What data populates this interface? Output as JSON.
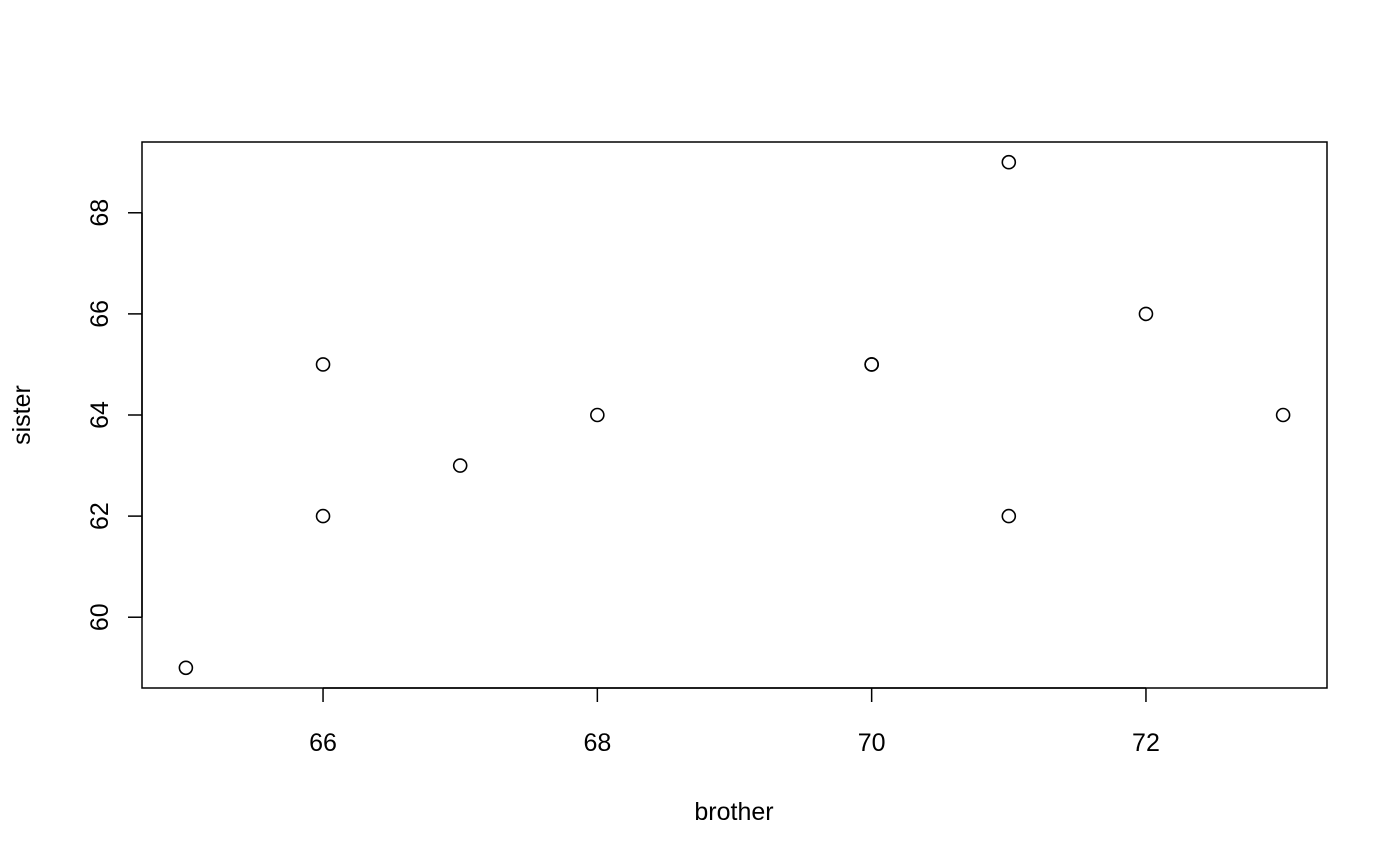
{
  "chart_data": {
    "type": "scatter",
    "xlabel": "brother",
    "ylabel": "sister",
    "xlim": [
      64.68,
      73.32
    ],
    "ylim": [
      58.6,
      69.4
    ],
    "xticks": [
      66,
      68,
      70,
      72
    ],
    "yticks": [
      60,
      62,
      64,
      66,
      68
    ],
    "grid": false,
    "marker": "open-circle",
    "colors": {
      "marker": "#000000",
      "axes": "#000000"
    },
    "points": [
      {
        "x": 65,
        "y": 59
      },
      {
        "x": 66,
        "y": 65
      },
      {
        "x": 66,
        "y": 62
      },
      {
        "x": 67,
        "y": 63
      },
      {
        "x": 68,
        "y": 64
      },
      {
        "x": 70,
        "y": 65
      },
      {
        "x": 70,
        "y": 65
      },
      {
        "x": 71,
        "y": 69
      },
      {
        "x": 71,
        "y": 62
      },
      {
        "x": 72,
        "y": 66
      },
      {
        "x": 73,
        "y": 64
      }
    ]
  }
}
